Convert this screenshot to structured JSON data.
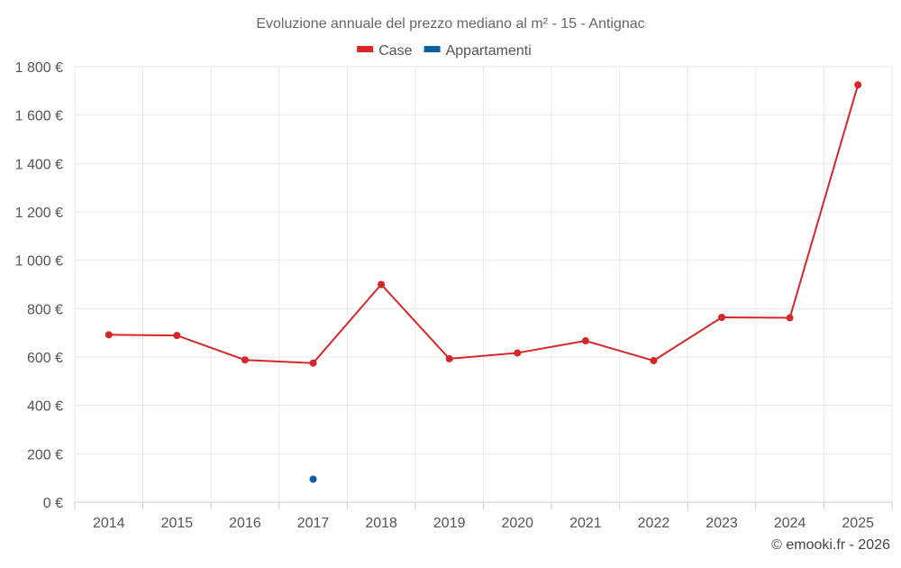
{
  "title": "Evoluzione annuale del prezzo mediano al m² - 15 - Antignac",
  "credit": "© emooki.fr - 2026",
  "chart_data": {
    "type": "line",
    "title": "Evoluzione annuale del prezzo mediano al m² - 15 - Antignac",
    "categories": [
      "2014",
      "2015",
      "2016",
      "2017",
      "2018",
      "2019",
      "2020",
      "2021",
      "2022",
      "2023",
      "2024",
      "2025"
    ],
    "y_ticks": [
      "0 €",
      "200 €",
      "400 €",
      "600 €",
      "800 €",
      "1 000 €",
      "1 200 €",
      "1 400 €",
      "1 600 €",
      "1 800 €"
    ],
    "ylim": [
      0,
      1800
    ],
    "grid": true,
    "legend_position": "top-center",
    "series": [
      {
        "name": "Case",
        "color": "#d62728",
        "values": [
          692,
          689,
          588,
          575,
          900,
          593,
          617,
          667,
          585,
          764,
          762,
          1725
        ]
      },
      {
        "name": "Appartamenti",
        "color": "#0b5fa5",
        "values": [
          null,
          null,
          null,
          95,
          null,
          null,
          null,
          null,
          null,
          null,
          null,
          null
        ]
      }
    ]
  }
}
